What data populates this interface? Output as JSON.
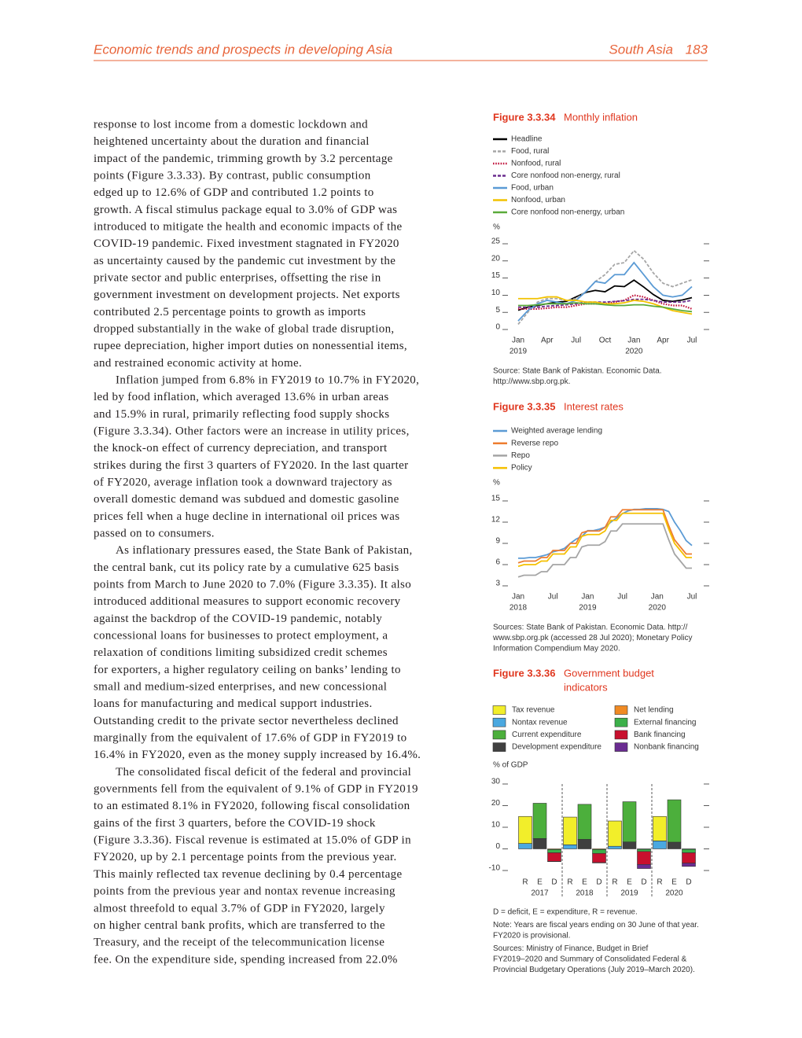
{
  "header": {
    "left": "Economic trends and prospects in developing Asia",
    "section": "South Asia",
    "page": "183"
  },
  "body": {
    "paragraphs": [
      [
        "response to lost income from a domestic lockdown and",
        "heightened uncertainty about the duration and financial",
        "impact of the pandemic, trimming growth by 3.2 percentage",
        "points (Figure 3.3.33). By contrast, public consumption",
        "edged up to 12.6% of GDP and contributed 1.2 points to",
        "growth. A fiscal stimulus package equal to 3.0% of GDP was",
        "introduced to mitigate the health and economic impacts of the",
        "COVID-19 pandemic. Fixed investment stagnated in FY2020",
        "as uncertainty caused by the pandemic cut investment by the",
        "private sector and public enterprises, offsetting the rise in",
        "government investment on development projects. Net exports",
        "contributed 2.5 percentage points to growth as imports",
        "dropped substantially in the wake of global trade disruption,",
        "rupee depreciation, higher import duties on nonessential items,",
        "and restrained economic activity at home."
      ],
      [
        "Inflation jumped from 6.8% in FY2019 to 10.7% in FY2020,",
        "led by food inflation, which averaged 13.6% in urban areas",
        "and 15.9% in rural, primarily reflecting food supply shocks",
        "(Figure 3.3.34). Other factors were an increase in utility prices,",
        "the knock-on effect of currency depreciation, and transport",
        "strikes during the first 3 quarters of FY2020. In the last quarter",
        "of FY2020, average inflation took a downward trajectory as",
        "overall domestic demand was subdued and domestic gasoline",
        "prices fell when a huge decline in international oil prices was",
        "passed on to consumers."
      ],
      [
        "As inflationary pressures eased, the State Bank of Pakistan,",
        "the central bank, cut its policy rate by a cumulative 625 basis",
        "points from March to June 2020 to 7.0% (Figure 3.3.35). It also",
        "introduced additional measures to support economic recovery",
        "against the backdrop of the COVID-19 pandemic, notably",
        "concessional loans for businesses to protect employment, a",
        "relaxation of conditions limiting subsidized credit schemes",
        "for exporters, a higher regulatory ceiling on banks’ lending to",
        "small and medium-sized enterprises, and new concessional",
        "loans for manufacturing and medical support industries.",
        "Outstanding credit to the private sector nevertheless declined",
        "marginally from the equivalent of 17.6% of GDP in FY2019 to",
        "16.4% in FY2020, even as the money supply increased by 16.4%."
      ],
      [
        "The consolidated fiscal deficit of the federal and provincial",
        "governments fell from the equivalent of 9.1% of GDP in FY2019",
        "to an estimated 8.1% in FY2020, following fiscal consolidation",
        "gains of the first 3 quarters, before the COVID-19 shock",
        "(Figure 3.3.36). Fiscal revenue is estimated at 15.0% of GDP in",
        "FY2020, up by 2.1 percentage points from the previous year.",
        "This mainly reflected tax revenue declining by 0.4 percentage",
        "points from the previous year and nontax revenue increasing",
        "almost threefold to equal 3.7% of GDP in FY2020, largely",
        "on higher central bank profits, which are transferred to the",
        "Treasury, and the receipt of the telecommunication license",
        "fee. On the expenditure side, spending increased from 22.0%"
      ]
    ]
  },
  "chart_data": [
    {
      "type": "line",
      "figure_label": "Figure 3.3.34",
      "title": [
        "Monthly inflation"
      ],
      "y_label": "%",
      "categories": [
        "Jan",
        null,
        null,
        "Apr",
        null,
        null,
        "Jul",
        null,
        null,
        "Oct",
        null,
        null,
        "Jan",
        null,
        null,
        "Apr",
        null,
        null,
        "Jul"
      ],
      "year_labels": [
        "2019",
        null,
        null,
        null,
        null,
        null,
        null,
        null,
        null,
        null,
        null,
        null,
        "2020",
        null,
        null,
        null,
        null,
        null,
        null
      ],
      "ylim": [
        0,
        25
      ],
      "yticks": [
        0,
        5,
        10,
        15,
        20,
        25
      ],
      "series": [
        {
          "name": "Headline",
          "color": "#000000",
          "line_style": "solid",
          "values": [
            5.6,
            6.5,
            7.0,
            7.5,
            8.0,
            8.2,
            9.5,
            10.8,
            11.4,
            11.0,
            12.7,
            12.5,
            14.4,
            12.4,
            10.2,
            8.5,
            8.2,
            8.6,
            9.3
          ]
        },
        {
          "name": "Food, rural",
          "color": "#a6a6a6",
          "line_style": "dashed",
          "values": [
            1.5,
            5.0,
            8.0,
            9.0,
            9.0,
            8.5,
            9.0,
            11.0,
            14.0,
            16.0,
            19.0,
            19.5,
            23.0,
            20.5,
            16.5,
            13.5,
            12.5,
            13.5,
            14.5
          ]
        },
        {
          "name": "Nonfood, rural",
          "color": "#c0143c",
          "line_style": "dotted",
          "values": [
            6.0,
            6.0,
            6.0,
            6.2,
            6.5,
            6.5,
            7.0,
            7.5,
            7.5,
            7.5,
            8.0,
            8.5,
            10.0,
            9.5,
            8.5,
            7.5,
            7.0,
            7.0,
            6.0
          ]
        },
        {
          "name": "Core nonfood non-energy, rural",
          "color": "#6b2d8f",
          "line_style": "dashed",
          "values": [
            6.5,
            6.5,
            6.5,
            6.8,
            7.0,
            7.2,
            7.5,
            8.0,
            8.0,
            8.0,
            8.2,
            8.4,
            8.8,
            8.8,
            8.5,
            8.0,
            8.0,
            8.0,
            8.5
          ]
        },
        {
          "name": "Food, urban",
          "color": "#5b9bd5",
          "line_style": "solid",
          "values": [
            2.5,
            5.5,
            7.5,
            8.5,
            8.0,
            7.5,
            8.5,
            11.0,
            14.0,
            13.5,
            16.0,
            16.0,
            19.5,
            16.0,
            12.5,
            10.0,
            9.5,
            10.0,
            12.5
          ]
        },
        {
          "name": "Nonfood, urban",
          "color": "#f2c200",
          "line_style": "solid",
          "values": [
            9.0,
            9.0,
            9.0,
            9.5,
            9.5,
            8.5,
            8.5,
            8.0,
            8.0,
            7.5,
            7.5,
            7.8,
            8.5,
            8.2,
            7.5,
            6.5,
            5.5,
            5.0,
            4.5
          ]
        },
        {
          "name": "Core nonfood non-energy, urban",
          "color": "#5aab3a",
          "line_style": "solid",
          "values": [
            7.0,
            7.0,
            7.2,
            7.5,
            7.5,
            7.5,
            7.8,
            7.5,
            7.5,
            7.2,
            7.0,
            7.0,
            7.2,
            7.2,
            6.8,
            6.5,
            6.0,
            5.5,
            5.2
          ]
        }
      ],
      "source": [
        "Source: State Bank of Pakistan. Economic Data.",
        "http://www.sbp.org.pk."
      ]
    },
    {
      "type": "line",
      "figure_label": "Figure 3.3.35",
      "title": [
        "Interest rates"
      ],
      "y_label": "%",
      "categories": [
        "Jan",
        null,
        null,
        null,
        null,
        null,
        "Jul",
        null,
        null,
        null,
        null,
        null,
        "Jan",
        null,
        null,
        null,
        null,
        null,
        "Jul",
        null,
        null,
        null,
        null,
        null,
        "Jan",
        null,
        null,
        null,
        null,
        null,
        "Jul"
      ],
      "year_labels": [
        "2018",
        null,
        null,
        null,
        null,
        null,
        null,
        null,
        null,
        null,
        null,
        null,
        "2019",
        null,
        null,
        null,
        null,
        null,
        null,
        null,
        null,
        null,
        null,
        null,
        "2020",
        null,
        null,
        null,
        null,
        null,
        null
      ],
      "ylim": [
        3,
        15
      ],
      "yticks": [
        3,
        6,
        9,
        12,
        15
      ],
      "series": [
        {
          "name": "Weighted average lending",
          "color": "#5b9bd5",
          "values": [
            6.9,
            6.9,
            7.0,
            7.0,
            7.2,
            7.4,
            7.8,
            8.0,
            8.3,
            9.0,
            9.6,
            10.0,
            10.8,
            10.8,
            11.0,
            11.3,
            12.0,
            12.6,
            13.2,
            13.6,
            13.8,
            13.8,
            13.9,
            13.9,
            13.9,
            13.8,
            13.5,
            12.0,
            10.8,
            9.4,
            8.7
          ]
        },
        {
          "name": "Reverse repo",
          "color": "#ed7d31",
          "values": [
            6.25,
            6.5,
            6.5,
            6.5,
            7.0,
            7.0,
            8.0,
            8.0,
            8.0,
            9.0,
            9.0,
            10.5,
            10.75,
            10.75,
            10.75,
            11.25,
            12.75,
            12.75,
            13.75,
            13.75,
            13.75,
            13.75,
            13.75,
            13.75,
            13.75,
            13.75,
            11.5,
            9.5,
            8.5,
            7.5,
            7.5
          ]
        },
        {
          "name": "Repo",
          "color": "#a5a5a5",
          "values": [
            4.25,
            4.5,
            4.5,
            4.5,
            5.0,
            5.0,
            6.0,
            6.0,
            6.0,
            7.0,
            7.0,
            8.5,
            8.75,
            8.75,
            8.75,
            9.25,
            10.75,
            10.75,
            11.75,
            11.75,
            11.75,
            11.75,
            11.75,
            11.75,
            11.75,
            11.75,
            9.5,
            7.5,
            6.5,
            5.5,
            5.5
          ]
        },
        {
          "name": "Policy",
          "color": "#f5c000",
          "values": [
            5.75,
            6.0,
            6.0,
            6.0,
            6.5,
            6.5,
            7.5,
            7.5,
            7.5,
            8.5,
            8.5,
            10.0,
            10.25,
            10.25,
            10.25,
            10.75,
            12.25,
            12.25,
            13.25,
            13.25,
            13.25,
            13.25,
            13.25,
            13.25,
            13.25,
            13.25,
            11.0,
            9.0,
            8.0,
            7.0,
            7.0
          ]
        }
      ],
      "source": [
        "Sources: State Bank of Pakistan. Economic Data. http://",
        "www.sbp.org.pk (accessed 28 Jul 2020); Monetary Policy",
        "Information Compendium May 2020."
      ]
    },
    {
      "type": "bar",
      "stacked": true,
      "figure_label": "Figure 3.3.36",
      "title": [
        "Government budget",
        "indicators"
      ],
      "y_label": "% of GDP",
      "categories": [
        "R",
        "E",
        "D",
        "R",
        "E",
        "D",
        "R",
        "E",
        "D",
        "R",
        "E",
        "D"
      ],
      "year_labels": [
        null,
        "2017",
        null,
        null,
        "2018",
        null,
        null,
        "2019",
        null,
        null,
        "2020",
        null
      ],
      "ylim": [
        -10,
        30
      ],
      "yticks": [
        -10,
        0,
        10,
        20,
        30
      ],
      "series": [
        {
          "name": "Tax revenue",
          "color": "#f2ee2a",
          "values": [
            12.5,
            null,
            null,
            12.8,
            null,
            null,
            11.7,
            null,
            null,
            11.3,
            null,
            null
          ]
        },
        {
          "name": "Nontax revenue",
          "color": "#4aa8e0",
          "values": [
            2.5,
            null,
            null,
            1.9,
            null,
            null,
            1.2,
            null,
            null,
            3.7,
            null,
            null
          ]
        },
        {
          "name": "Current expenditure",
          "color": "#4caf3c",
          "values": [
            null,
            16.3,
            null,
            null,
            16.2,
            null,
            null,
            18.6,
            null,
            null,
            19.6,
            null
          ]
        },
        {
          "name": "Development expenditure",
          "color": "#404040",
          "values": [
            null,
            4.8,
            null,
            null,
            4.4,
            null,
            null,
            3.2,
            null,
            null,
            3.1,
            null
          ]
        },
        {
          "name": "Net lending",
          "color": "#f08a24",
          "values": [
            null,
            null,
            -0.3,
            null,
            null,
            -0.3,
            null,
            null,
            -0.2,
            null,
            null,
            -0.2
          ]
        },
        {
          "name": "External financing",
          "color": "#3cb04a",
          "values": [
            null,
            null,
            -1.5,
            null,
            null,
            -1.8,
            null,
            null,
            -1.0,
            null,
            null,
            -1.6
          ]
        },
        {
          "name": "Bank financing",
          "color": "#c8102e",
          "values": [
            null,
            null,
            -4.0,
            null,
            null,
            -4.2,
            null,
            null,
            -6.0,
            null,
            null,
            -4.8
          ]
        },
        {
          "name": "Nonbank financing",
          "color": "#6a2c91",
          "values": [
            null,
            null,
            -0.1,
            null,
            null,
            -0.2,
            null,
            null,
            -1.9,
            null,
            null,
            -1.5
          ]
        }
      ],
      "notes": [
        [
          "D = deficit, E = expenditure, R = revenue."
        ],
        [
          "Note: Years are fiscal years ending on 30 June of that year.",
          "FY2020 is provisional."
        ],
        [
          "Sources: Ministry of Finance, Budget in Brief",
          "FY2019–2020 and Summary of Consolidated Federal &",
          "Provincial Budgetary Operations (July 2019–March 2020)."
        ]
      ]
    }
  ]
}
